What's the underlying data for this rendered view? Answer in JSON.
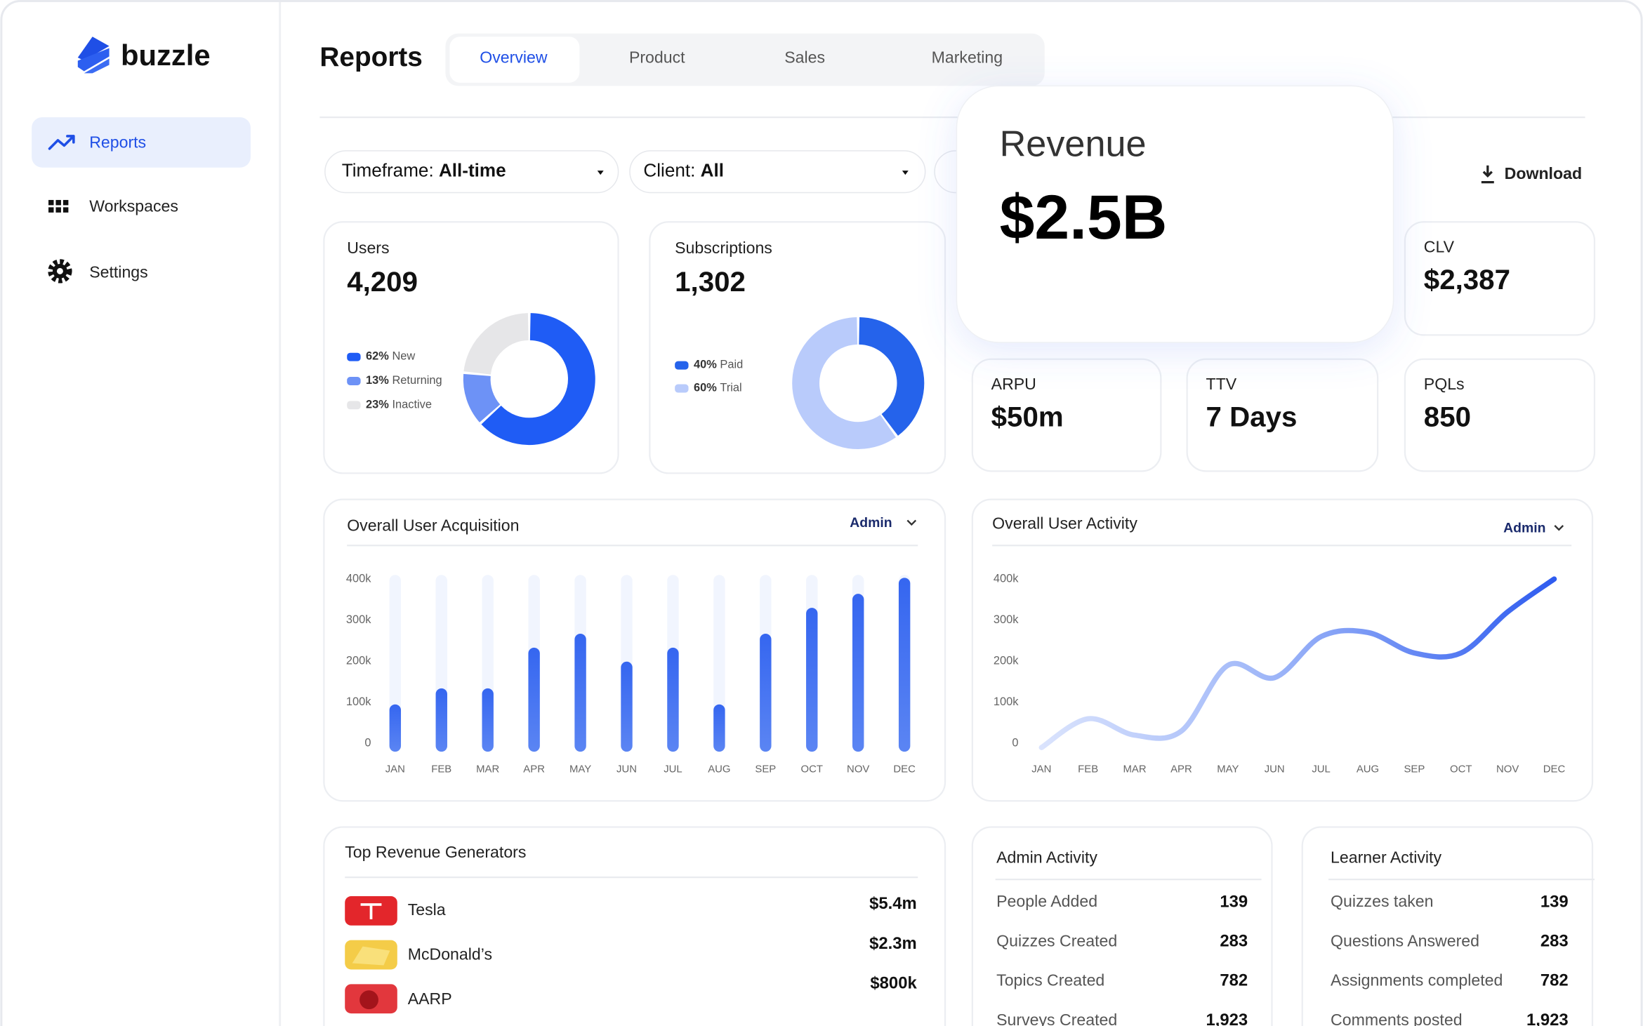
{
  "brand": "buzzle",
  "nav": [
    "Reports",
    "Workspaces",
    "Settings"
  ],
  "header": {
    "title": "Reports",
    "tabs": [
      "Overview",
      "Product",
      "Sales",
      "Marketing"
    ]
  },
  "filters": [
    {
      "label": "Timeframe:",
      "value": "All-time"
    },
    {
      "label": "Client:",
      "value": "All"
    }
  ],
  "download": "Download",
  "users": {
    "title": "Users",
    "value": "4,209",
    "segments": {
      "names": [
        "New",
        "Returning",
        "Inactive"
      ],
      "values": [
        62,
        13,
        23
      ],
      "value_labels": [
        "62%",
        "13%",
        "23%"
      ],
      "colors": [
        "#1f5cf5",
        "#6d92f6",
        "#e6e6e8"
      ]
    }
  },
  "subscriptions": {
    "title": "Subscriptions",
    "value": "1,302",
    "segments": {
      "names": [
        "Paid",
        "Trial"
      ],
      "values": [
        40,
        60
      ],
      "value_labels": [
        "40%",
        "60%"
      ],
      "colors": [
        "#2563eb",
        "#b9cbfb"
      ]
    }
  },
  "revenue": {
    "title": "Revenue",
    "value": "$2.5B"
  },
  "metrics": [
    {
      "title": "CLV",
      "value": "$2,387"
    },
    {
      "title": "ARPU",
      "value": "$50m"
    },
    {
      "title": "TTV",
      "value": "7 Days"
    },
    {
      "title": "PQLs",
      "value": "850"
    }
  ],
  "acquisition": {
    "type": "bar",
    "title": "Overall User Acquisition",
    "filter": "Admin",
    "categories": [
      "JAN",
      "FEB",
      "MAR",
      "APR",
      "MAY",
      "JUN",
      "JUL",
      "AUG",
      "SEP",
      "OCT",
      "NOV",
      "DEC"
    ],
    "values": [
      105000,
      144000,
      144000,
      243000,
      277000,
      209000,
      243000,
      105000,
      277000,
      340000,
      374000,
      413000
    ],
    "color": "#3f6ff2",
    "ylim": [
      0,
      420000
    ],
    "yticks": [
      0,
      {
        "value": 100000,
        "label": "100k"
      },
      {
        "value": 200000,
        "label": "200k"
      },
      {
        "value": 300000,
        "label": "300k"
      },
      {
        "value": 400000,
        "label": "400k"
      }
    ]
  },
  "activity": {
    "type": "line",
    "title": "Overall User Activity",
    "filter": "Admin",
    "categories": [
      "JAN",
      "FEB",
      "MAR",
      "APR",
      "MAY",
      "JUN",
      "JUL",
      "AUG",
      "SEP",
      "OCT",
      "NOV",
      "DEC"
    ],
    "values": [
      0,
      70000,
      30000,
      40000,
      200000,
      170000,
      270000,
      280000,
      230000,
      230000,
      330000,
      410000
    ],
    "color": "#2f5cf0",
    "ylim": [
      0,
      420000
    ],
    "yticks": [
      0,
      {
        "value": 100000,
        "label": "100k"
      },
      {
        "value": 200000,
        "label": "200k"
      },
      {
        "value": 300000,
        "label": "300k"
      },
      {
        "value": 400000,
        "label": "400k"
      }
    ]
  },
  "top_revenue": {
    "title": "Top Revenue Generators",
    "rows": [
      {
        "name": "Tesla",
        "value": "$5.4m"
      },
      {
        "name": "McDonald’s",
        "value": "$2.3m"
      },
      {
        "name": "AARP",
        "value": "$800k"
      }
    ]
  },
  "admin_activity": {
    "title": "Admin Activity",
    "rows": [
      [
        "People Added",
        "139"
      ],
      [
        "Quizzes Created",
        "283"
      ],
      [
        "Topics Created",
        "782"
      ],
      [
        "Surveys Created",
        "1,923"
      ]
    ]
  },
  "learner_activity": {
    "title": "Learner Activity",
    "rows": [
      [
        "Quizzes taken",
        "139"
      ],
      [
        "Questions Answered",
        "283"
      ],
      [
        "Assignments completed",
        "782"
      ],
      [
        "Comments posted",
        "1,923"
      ]
    ]
  }
}
